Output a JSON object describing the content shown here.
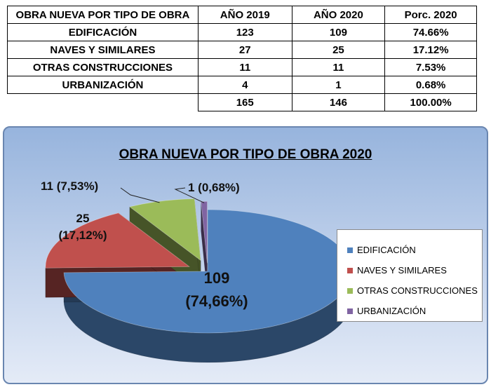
{
  "table": {
    "header": [
      "OBRA NUEVA POR TIPO DE OBRA",
      "AÑO 2019",
      "AÑO 2020",
      "Porc. 2020"
    ],
    "rows": [
      [
        "EDIFICACIÓN",
        "123",
        "109",
        "74.66%"
      ],
      [
        "NAVES Y SIMILARES",
        "27",
        "25",
        "17.12%"
      ],
      [
        "OTRAS CONSTRUCCIONES",
        "11",
        "11",
        "7.53%"
      ],
      [
        "URBANIZACIÓN",
        "4",
        "1",
        "0.68%"
      ]
    ],
    "totals": [
      "165",
      "146",
      "100.00%"
    ]
  },
  "chart_data": {
    "type": "pie",
    "title": "OBRA NUEVA POR TIPO DE OBRA 2020",
    "categories": [
      "EDIFICACIÓN",
      "NAVES Y SIMILARES",
      "OTRAS CONSTRUCCIONES",
      "URBANIZACIÓN"
    ],
    "values": [
      109,
      25,
      11,
      1
    ],
    "percent_labels": [
      "(74,66%)",
      "(17,12%)",
      "(7,53%)",
      "(0,68%)"
    ],
    "data_labels": {
      "edificacion": [
        "109",
        "(74,66%)"
      ],
      "naves": [
        "25",
        "(17,12%)"
      ],
      "otras": "11  (7,53%)",
      "urbanizacion": "1 (0,68%)"
    },
    "colors": [
      "#4f81bd",
      "#c0504d",
      "#9bbb59",
      "#8064a2"
    ],
    "legend_position": "right",
    "exploded": true
  }
}
